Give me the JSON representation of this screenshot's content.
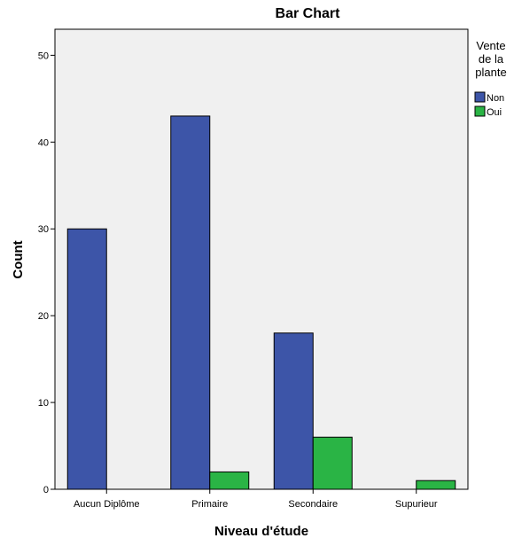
{
  "chart_data": {
    "type": "bar",
    "title": "Bar Chart",
    "xlabel": "Niveau d'étude",
    "ylabel": "Count",
    "categories": [
      "Aucun Diplôme",
      "Primaire",
      "Secondaire",
      "Supurieur"
    ],
    "series": [
      {
        "name": "Non",
        "values": [
          30,
          43,
          18,
          null
        ],
        "color": "#3d55a8"
      },
      {
        "name": "Oui",
        "values": [
          null,
          2,
          6,
          1
        ],
        "color": "#2ab445"
      }
    ],
    "ylim": [
      0,
      53
    ],
    "yticks": [
      0,
      10,
      20,
      30,
      40,
      50
    ],
    "grid": false,
    "legend": {
      "title_lines": [
        "Vente",
        "de la",
        "plante"
      ],
      "placement": "right"
    },
    "plot_background": "#f0f0f0"
  }
}
